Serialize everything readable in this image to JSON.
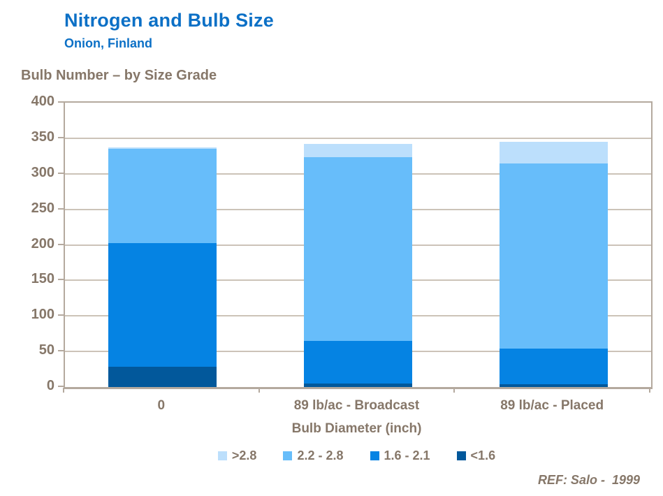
{
  "header": {
    "title": "Nitrogen and Bulb Size",
    "subtitle": "Onion, Finland"
  },
  "chart_heading": "Bulb Number – by Size Grade",
  "footer_ref": "REF: Salo -  1999",
  "colors": {
    "title_blue": "#0C70C6",
    "text_brown": "#867769",
    "grid": "#CCC3B8",
    "axis_border": "#B4A99E"
  },
  "chart_data": {
    "type": "bar",
    "stacked": true,
    "title": "Bulb Number – by Size Grade",
    "xlabel": "Bulb Diameter (inch)",
    "ylabel": "",
    "ylim": [
      0,
      400
    ],
    "yticks": [
      0,
      50,
      100,
      150,
      200,
      250,
      300,
      350,
      400
    ],
    "grid": "horizontal",
    "legend_position": "bottom",
    "legend_order": [
      ">2.8",
      "2.2 - 2.8",
      "1.6 - 2.1",
      "<1.6"
    ],
    "categories": [
      "0",
      "89 lb/ac - Broadcast",
      "89 lb/ac - Placed"
    ],
    "series": [
      {
        "name": "<1.6",
        "color": "#02589B",
        "values": [
          29,
          5,
          4
        ]
      },
      {
        "name": "1.6 - 2.1",
        "color": "#0583E3",
        "values": [
          173,
          60,
          50
        ]
      },
      {
        "name": "2.2 - 2.8",
        "color": "#67BDFA",
        "values": [
          133,
          258,
          261
        ]
      },
      {
        "name": ">2.8",
        "color": "#BCDFFC",
        "values": [
          2,
          19,
          30
        ]
      }
    ]
  }
}
